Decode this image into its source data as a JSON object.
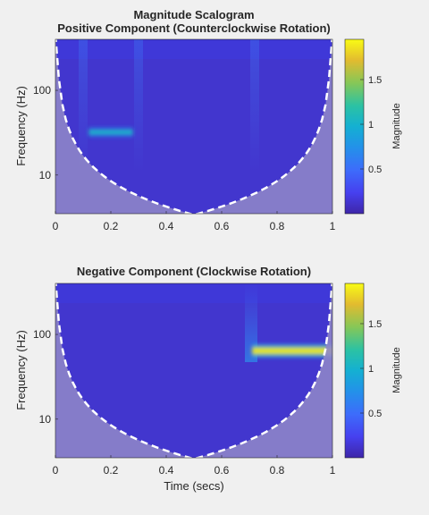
{
  "figure": {
    "suptitle": "Magnitude Scalogram"
  },
  "chart_data": [
    {
      "type": "heatmap",
      "title": "Positive Component (Counterclockwise Rotation)",
      "xlabel": "",
      "ylabel": "Frequency (Hz)",
      "xlim": [
        0,
        1
      ],
      "x_ticks": [
        0,
        0.2,
        0.4,
        0.6,
        0.8,
        1
      ],
      "x_tick_labels": [
        "0",
        "0.2",
        "0.4",
        "0.6",
        "0.8",
        "1"
      ],
      "y_scale": "log",
      "ylim": [
        3.5,
        400
      ],
      "y_ticks": [
        10,
        100
      ],
      "y_tick_labels": [
        "10",
        "100"
      ],
      "cone_of_influence": "dashed white line",
      "features": [
        {
          "t_start": 0.12,
          "t_end": 0.28,
          "freq": 32,
          "magnitude": 1.0
        }
      ],
      "colorbar": {
        "label": "Magnitude",
        "colormap": "parula",
        "range": [
          0,
          1.95
        ],
        "ticks": [
          0.5,
          1,
          1.5
        ],
        "tick_labels": [
          "0.5",
          "1",
          "1.5"
        ]
      }
    },
    {
      "type": "heatmap",
      "title": "Negative Component (Clockwise Rotation)",
      "xlabel": "Time (secs)",
      "ylabel": "Frequency (Hz)",
      "xlim": [
        0,
        1
      ],
      "x_ticks": [
        0,
        0.2,
        0.4,
        0.6,
        0.8,
        1
      ],
      "x_tick_labels": [
        "0",
        "0.2",
        "0.4",
        "0.6",
        "0.8",
        "1"
      ],
      "y_scale": "log",
      "ylim": [
        3.5,
        400
      ],
      "y_ticks": [
        10,
        100
      ],
      "y_tick_labels": [
        "10",
        "100"
      ],
      "cone_of_influence": "dashed white line",
      "features": [
        {
          "t_start": 0.71,
          "t_end": 1.0,
          "freq": 64,
          "magnitude": 1.9
        }
      ],
      "colorbar": {
        "label": "Magnitude",
        "colormap": "parula",
        "range": [
          0,
          1.95
        ],
        "ticks": [
          0.5,
          1,
          1.5
        ],
        "tick_labels": [
          "0.5",
          "1",
          "1.5"
        ]
      }
    }
  ]
}
